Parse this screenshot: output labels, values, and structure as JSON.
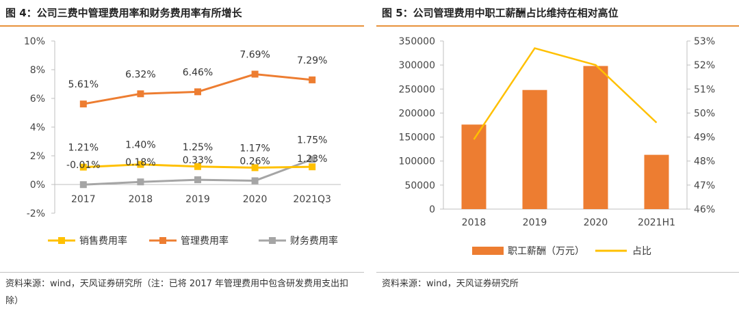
{
  "colors": {
    "accent": "#e8913a",
    "sales": "#ffc000",
    "admin": "#ed7d31",
    "finance": "#a5a5a5",
    "bar": "#ed7d31",
    "share": "#ffc000"
  },
  "left": {
    "title": "图 4：公司三费中管理费用率和财务费用率有所增长",
    "source": "资料来源：wind，天风证券研究所（注：已将 2017 年管理费用中包含研发费用支出扣除）"
  },
  "right": {
    "title": "图 5：公司管理费用中职工薪酬占比维持在相对高位",
    "source": "资料来源：wind，天风证券研究所"
  },
  "chart_data": [
    {
      "type": "line",
      "categories": [
        "2017",
        "2018",
        "2019",
        "2020",
        "2021Q3"
      ],
      "y_ticks": [
        "-2%",
        "0%",
        "2%",
        "4%",
        "6%",
        "8%",
        "10%"
      ],
      "ylim": [
        -2,
        10
      ],
      "unit": "%",
      "legend_position": "bottom",
      "series": [
        {
          "name": "销售费用率",
          "values": [
            1.21,
            1.4,
            1.25,
            1.17,
            1.23
          ],
          "labels": [
            "1.21%",
            "1.40%",
            "1.25%",
            "1.17%",
            "1.23%"
          ]
        },
        {
          "name": "管理费用率",
          "values": [
            5.61,
            6.32,
            6.46,
            7.69,
            7.29
          ],
          "labels": [
            "5.61%",
            "6.32%",
            "6.46%",
            "7.69%",
            "7.29%"
          ]
        },
        {
          "name": "财务费用率",
          "values": [
            -0.01,
            0.18,
            0.33,
            0.26,
            1.75
          ],
          "labels": [
            "-0.01%",
            "0.18%",
            "0.33%",
            "0.26%",
            "1.75%"
          ]
        }
      ]
    },
    {
      "type": "bar",
      "categories": [
        "2018",
        "2019",
        "2020",
        "2021H1"
      ],
      "ylim": [
        0,
        350000
      ],
      "y_ticks": [
        "0",
        "50000",
        "100000",
        "150000",
        "200000",
        "250000",
        "300000",
        "350000"
      ],
      "y2lim": [
        46,
        53
      ],
      "y2_ticks": [
        "46%",
        "47%",
        "48%",
        "49%",
        "50%",
        "51%",
        "52%",
        "53%"
      ],
      "legend_position": "bottom",
      "series": [
        {
          "name": "职工薪酬（万元）",
          "type": "bar",
          "axis": "left",
          "values": [
            176000,
            248000,
            298000,
            113000
          ]
        },
        {
          "name": "占比",
          "type": "line",
          "axis": "right",
          "values": [
            48.9,
            52.7,
            52.0,
            49.6
          ]
        }
      ]
    }
  ]
}
